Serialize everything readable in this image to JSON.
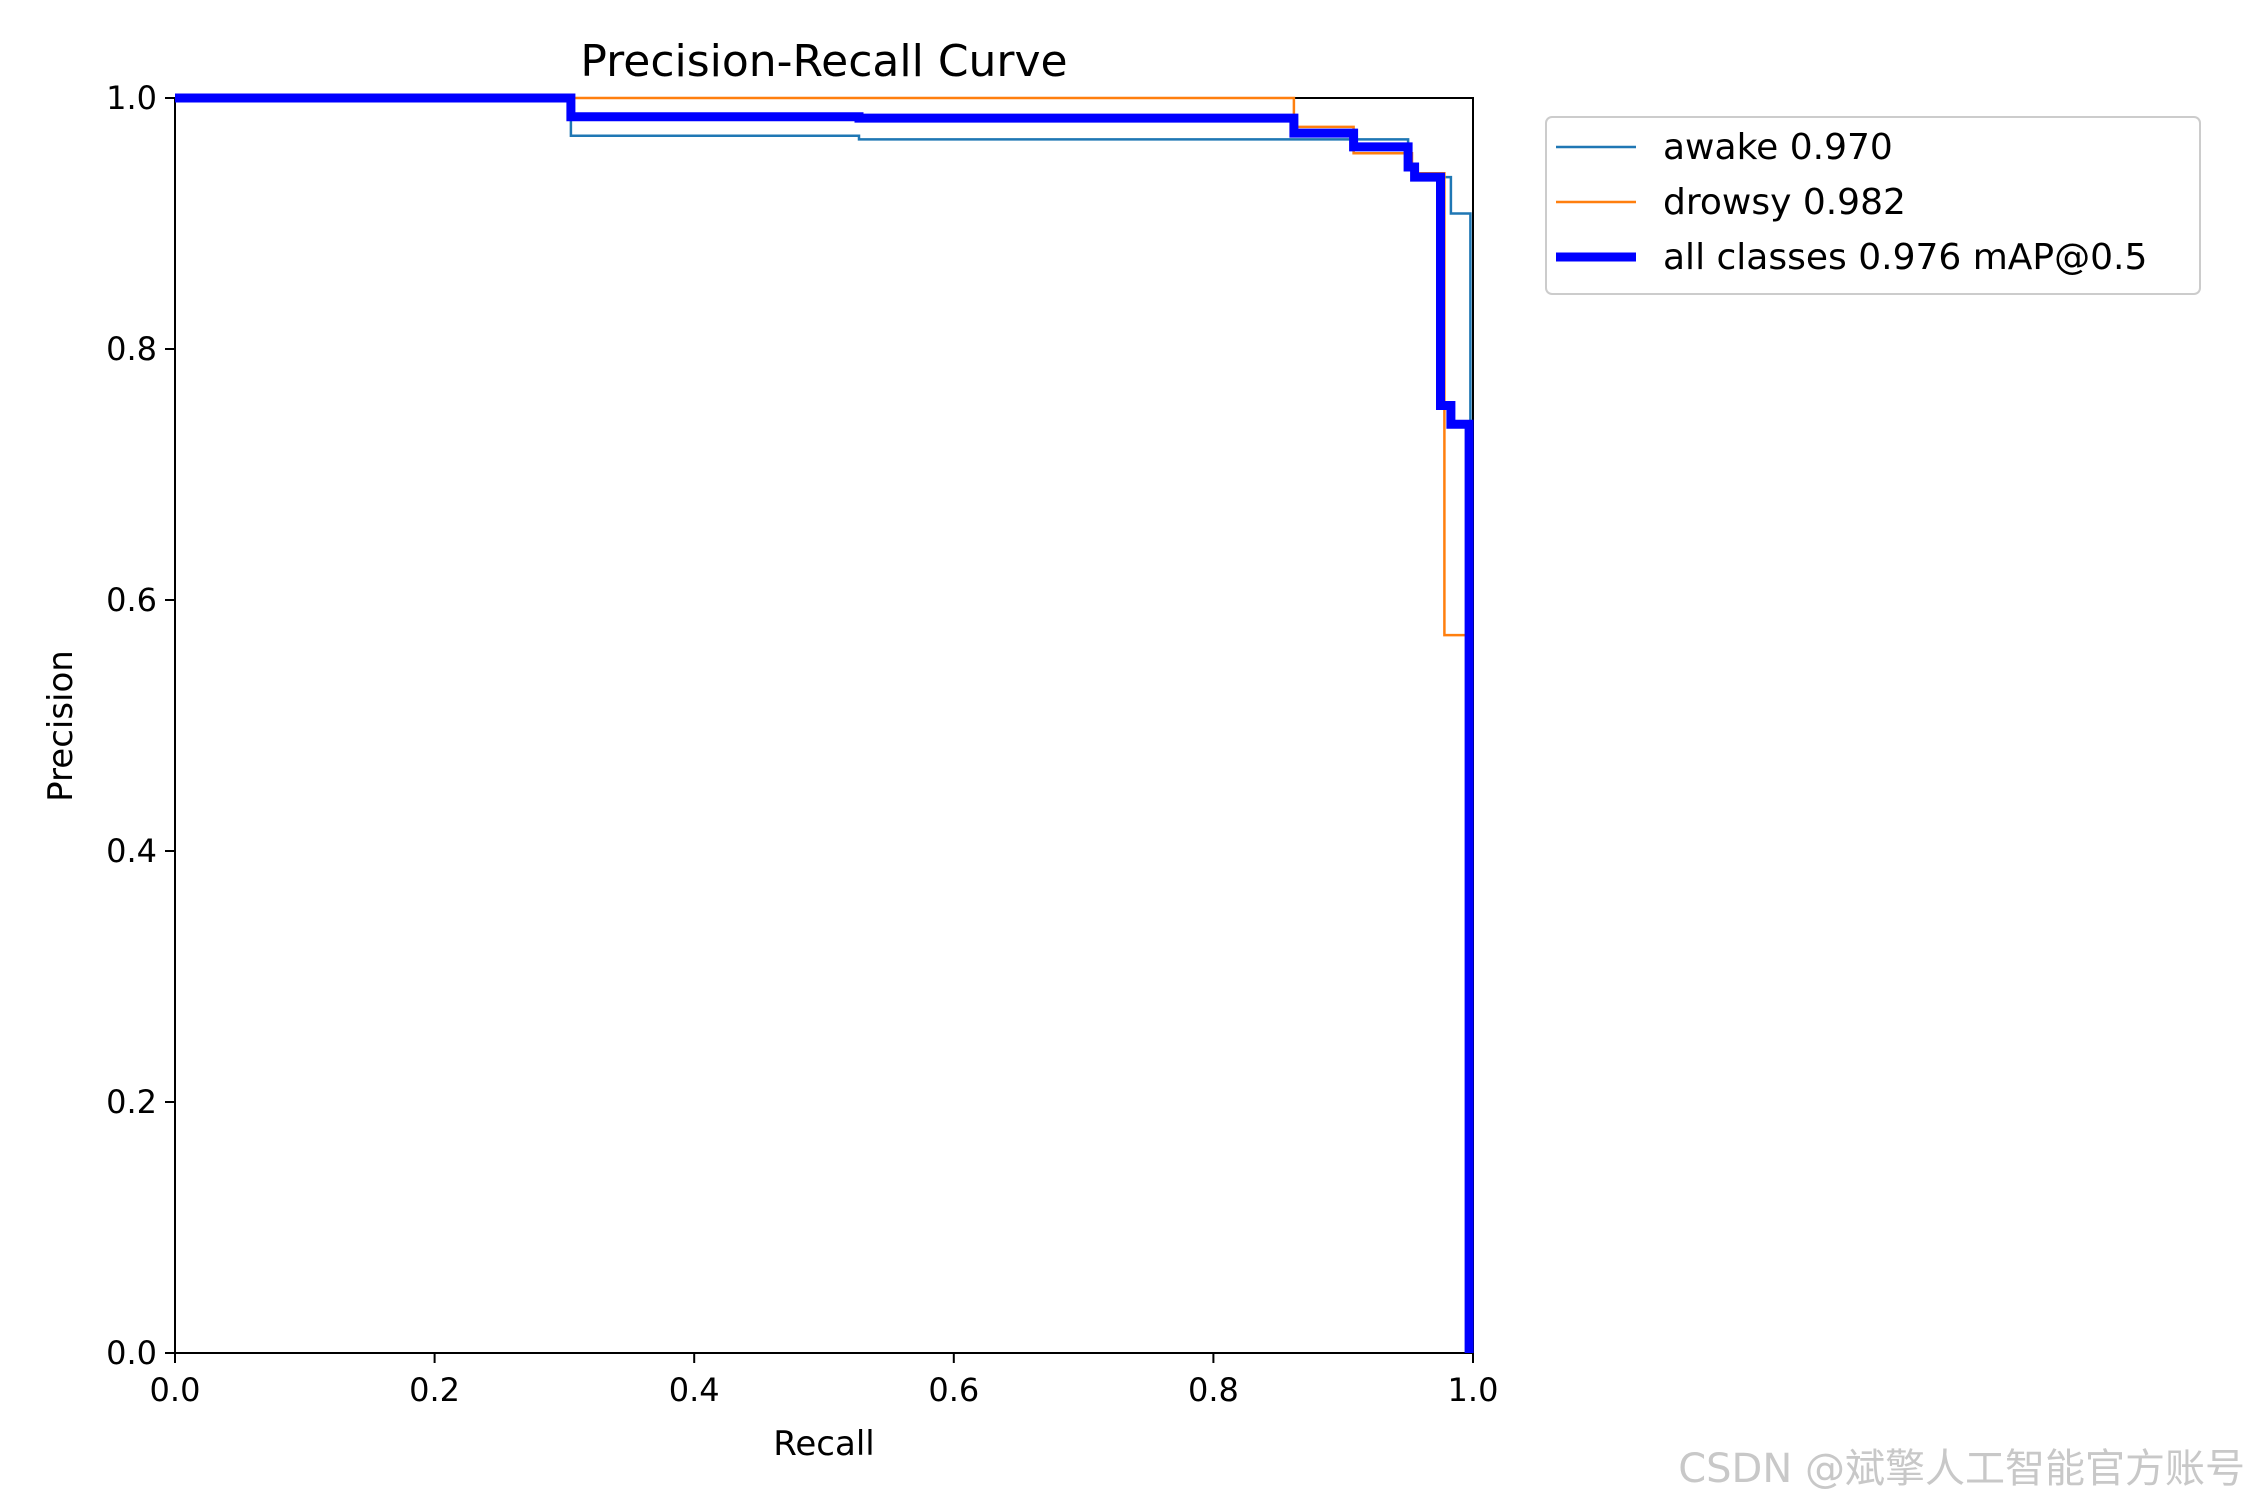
{
  "chart_data": {
    "type": "line",
    "title": "Precision-Recall Curve",
    "xlabel": "Recall",
    "ylabel": "Precision",
    "xlim": [
      0,
      1
    ],
    "ylim": [
      0,
      1
    ],
    "xticks": [
      "0.0",
      "0.2",
      "0.4",
      "0.6",
      "0.8",
      "1.0"
    ],
    "yticks": [
      "0.0",
      "0.2",
      "0.4",
      "0.6",
      "0.8",
      "1.0"
    ],
    "grid": false,
    "legend_position": "outside-right-top",
    "series": [
      {
        "name": "awake 0.970",
        "color": "#1f77b4",
        "linewidth": "thin",
        "points": [
          [
            0,
            1.0
          ],
          [
            0.305,
            1.0
          ],
          [
            0.305,
            0.97
          ],
          [
            0.527,
            0.97
          ],
          [
            0.527,
            0.967
          ],
          [
            0.95,
            0.967
          ],
          [
            0.95,
            0.945
          ],
          [
            0.955,
            0.945
          ],
          [
            0.955,
            0.937
          ],
          [
            0.983,
            0.937
          ],
          [
            0.983,
            0.908
          ],
          [
            0.998,
            0.908
          ],
          [
            0.998,
            0.0
          ]
        ]
      },
      {
        "name": "drowsy 0.982",
        "color": "#ff7f0e",
        "linewidth": "thin",
        "points": [
          [
            0,
            1.0
          ],
          [
            0.862,
            1.0
          ],
          [
            0.862,
            0.977
          ],
          [
            0.908,
            0.977
          ],
          [
            0.908,
            0.956
          ],
          [
            0.953,
            0.956
          ],
          [
            0.953,
            0.94
          ],
          [
            0.978,
            0.94
          ],
          [
            0.978,
            0.572
          ],
          [
            0.996,
            0.572
          ],
          [
            0.996,
            0.0
          ]
        ]
      },
      {
        "name": "all classes 0.976 mAP@0.5",
        "color": "#0000ff",
        "linewidth": "thick",
        "points": [
          [
            0,
            1.0
          ],
          [
            0.305,
            1.0
          ],
          [
            0.305,
            0.985
          ],
          [
            0.527,
            0.985
          ],
          [
            0.527,
            0.984
          ],
          [
            0.862,
            0.984
          ],
          [
            0.862,
            0.972
          ],
          [
            0.908,
            0.972
          ],
          [
            0.908,
            0.961
          ],
          [
            0.95,
            0.961
          ],
          [
            0.95,
            0.945
          ],
          [
            0.955,
            0.945
          ],
          [
            0.955,
            0.937
          ],
          [
            0.975,
            0.937
          ],
          [
            0.975,
            0.755
          ],
          [
            0.983,
            0.755
          ],
          [
            0.983,
            0.74
          ],
          [
            0.997,
            0.74
          ],
          [
            0.997,
            0.0
          ]
        ]
      }
    ]
  },
  "watermark": "CSDN @斌擎人工智能官方账号"
}
